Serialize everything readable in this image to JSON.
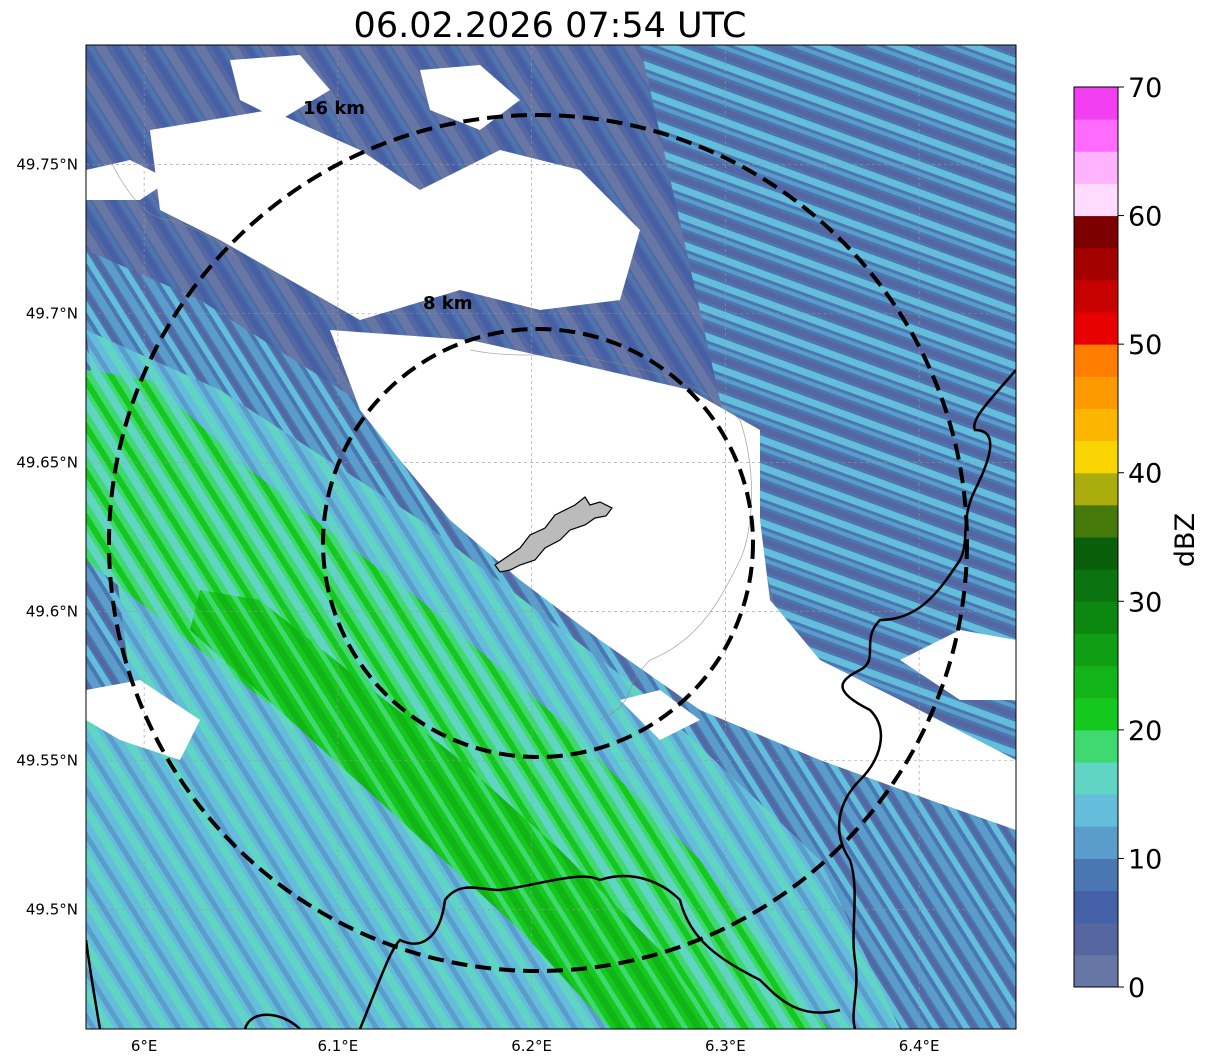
{
  "title": "06.02.2026 07:54 UTC",
  "map": {
    "lon_range": [
      5.97,
      6.45
    ],
    "lat_range": [
      49.46,
      49.79
    ],
    "lon_ticks": [
      {
        "value": 6.0,
        "label": "6°E"
      },
      {
        "value": 6.1,
        "label": "6.1°E"
      },
      {
        "value": 6.2,
        "label": "6.2°E"
      },
      {
        "value": 6.3,
        "label": "6.3°E"
      },
      {
        "value": 6.4,
        "label": "6.4°E"
      }
    ],
    "lat_ticks": [
      {
        "value": 49.5,
        "label": "49.5°N"
      },
      {
        "value": 49.55,
        "label": "49.55°N"
      },
      {
        "value": 49.6,
        "label": "49.6°N"
      },
      {
        "value": 49.65,
        "label": "49.65°N"
      },
      {
        "value": 49.7,
        "label": "49.7°N"
      },
      {
        "value": 49.75,
        "label": "49.75°N"
      }
    ],
    "gridlines": true,
    "center": {
      "lon": 6.2,
      "lat": 49.623
    },
    "range_rings": [
      {
        "radius_km": 8,
        "label": "8 km"
      },
      {
        "radius_km": 16,
        "label": "16 km"
      }
    ],
    "precip_bands": [
      {
        "name": "main-band",
        "dbz": 12
      },
      {
        "name": "main-band-edge",
        "dbz": 17
      },
      {
        "name": "main-band-core",
        "dbz": 22
      },
      {
        "name": "main-band-peak",
        "dbz": 25
      },
      {
        "name": "northern-band",
        "dbz": 5
      },
      {
        "name": "eastern-band",
        "dbz": 10
      }
    ]
  },
  "colorbar": {
    "label": "dBZ",
    "min": 0,
    "max": 70,
    "step": 2.5,
    "tick_values": [
      0,
      10,
      20,
      30,
      40,
      50,
      60,
      70
    ],
    "tick_labels": [
      "0",
      "10",
      "20",
      "30",
      "40",
      "50",
      "60",
      "70"
    ],
    "colors": [
      "#6677a6",
      "#5566a0",
      "#4460a6",
      "#4a77b2",
      "#5a9dca",
      "#63bddb",
      "#60d5c4",
      "#40d870",
      "#14c81e",
      "#12b418",
      "#0f9e14",
      "#0c8810",
      "#0b7410",
      "#085e0a",
      "#457a0a",
      "#a9ac0c",
      "#f9d504",
      "#fcb600",
      "#fd9a00",
      "#ff7e00",
      "#e80000",
      "#c70000",
      "#a50000",
      "#7c0000",
      "#ffdcff",
      "#ffb3ff",
      "#ff6bff",
      "#f23ff2"
    ]
  }
}
